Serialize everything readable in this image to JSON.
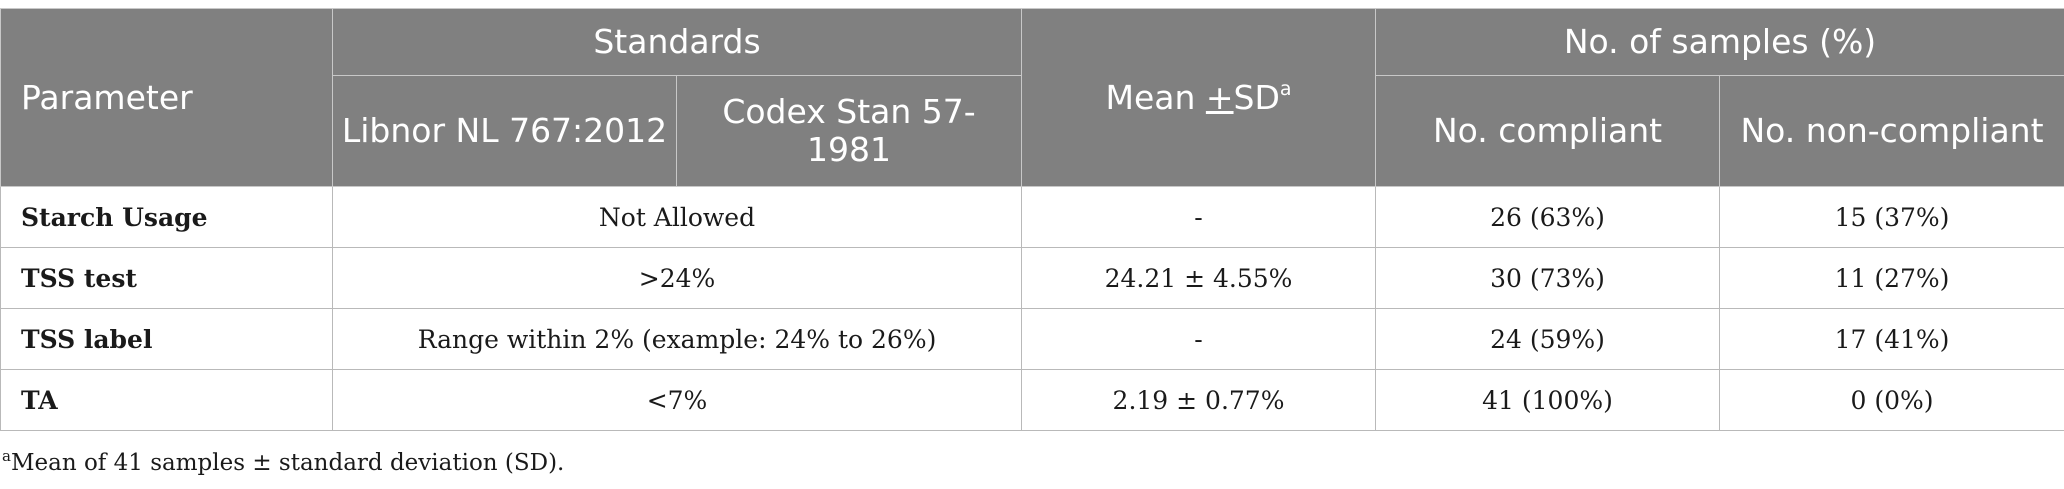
{
  "header": {
    "parameter": "Parameter",
    "standards": "Standards",
    "libnor": "Libnor NL 767:2012",
    "codex": "Codex Stan 57-1981",
    "mean_prefix": "Mean ",
    "mean_pm": "+",
    "mean_sd": "SD",
    "mean_sup": "a",
    "samples": "No. of samples (%)",
    "compliant": "No. compliant",
    "noncompliant": "No. non-compliant"
  },
  "rows": [
    {
      "parameter": "Starch Usage",
      "standard": "Not Allowed",
      "mean": "-",
      "compliant": "26 (63%)",
      "noncompliant": "15 (37%)"
    },
    {
      "parameter": "TSS test",
      "standard": ">24%",
      "mean": "24.21 ± 4.55%",
      "compliant": "30 (73%)",
      "noncompliant": "11 (27%)"
    },
    {
      "parameter": "TSS label",
      "standard": "Range within 2% (example: 24% to 26%)",
      "mean": "-",
      "compliant": "24 (59%)",
      "noncompliant": "17 (41%)"
    },
    {
      "parameter": "TA",
      "standard": "<7%",
      "mean": "2.19 ± 0.77%",
      "compliant": "41 (100%)",
      "noncompliant": "0 (0%)"
    }
  ],
  "footnote": {
    "marker": "a",
    "text": "Mean of 41 samples ± standard deviation (SD)."
  },
  "colors": {
    "header_bg": "#808080",
    "header_text": "#ffffff",
    "border": "#b9b9b9"
  }
}
